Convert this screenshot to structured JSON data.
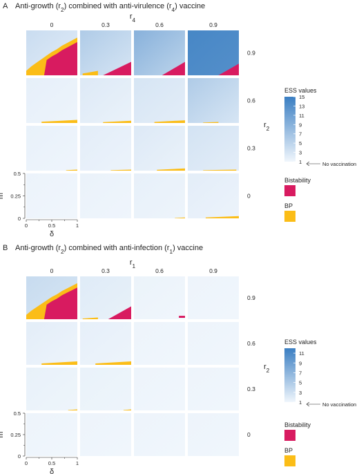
{
  "chart_data": [
    {
      "type": "heatmap",
      "panel": "A",
      "title_parts": [
        "Anti-growth (r",
        "2",
        ") combined with anti-virulence (r",
        "4",
        ") vaccine"
      ],
      "column_variable": {
        "name": "r",
        "sub": "4"
      },
      "column_values": [
        "0",
        "0.3",
        "0.6",
        "0.9"
      ],
      "row_variable": {
        "name": "r",
        "sub": "2"
      },
      "row_values": [
        "0.9",
        "0.6",
        "0.3",
        "0"
      ],
      "xlabel": "δ",
      "x_ticks": [
        "0",
        "0.5",
        "1"
      ],
      "xlim": [
        0,
        1
      ],
      "ylabel": "m",
      "y_ticks": [
        "0.5",
        "0.25",
        "0"
      ],
      "ylim": [
        0,
        0.5
      ],
      "legend": {
        "title": "ESS values",
        "ticks": [
          "15",
          "13",
          "11",
          "9",
          "7",
          "5",
          "3",
          "1"
        ],
        "range": [
          1,
          15
        ],
        "colors": [
          "#f0f6fc",
          "#3a7ec2"
        ],
        "annotation": "No vaccination",
        "categories": [
          {
            "name": "Bistability",
            "color": "#d81b60"
          },
          {
            "name": "BP",
            "color": "#fbbd17"
          }
        ]
      },
      "cells": [
        [
          {
            "ess": [
              2.0,
              4.0
            ],
            "bist_boundary": [
              [
                0,
                0
              ],
              [
                0.1,
                0.05
              ],
              [
                0.2,
                0.09
              ],
              [
                0.3,
                0.13
              ],
              [
                0.4,
                0.17
              ],
              [
                0.5,
                0.21
              ],
              [
                0.6,
                0.24
              ],
              [
                0.7,
                0.28
              ],
              [
                0.8,
                0.31
              ],
              [
                0.9,
                0.34
              ],
              [
                1.0,
                0.37
              ]
            ],
            "bp_width": 0.05,
            "bp_strip": null
          },
          {
            "ess": [
              3.0,
              6.0
            ],
            "bist_corner": [
              0.45,
              0.15
            ],
            "bp_strip": [
              0.05,
              0.35,
              0.05
            ]
          },
          {
            "ess": [
              5.0,
              9.0
            ],
            "bist_corner": [
              0.55,
              0.15
            ],
            "bp_strip": null
          },
          {
            "ess": [
              13.0,
              14.0
            ],
            "bist_corner": [
              0.6,
              0.13
            ],
            "bp_strip": null
          }
        ],
        [
          {
            "ess": [
              1.2,
              1.8
            ],
            "bist_corner": null,
            "bp_strip": [
              0.3,
              1.0,
              0.035
            ]
          },
          {
            "ess": [
              1.5,
              2.5
            ],
            "bist_corner": null,
            "bp_strip": [
              0.45,
              1.0,
              0.025
            ]
          },
          {
            "ess": [
              2.0,
              3.0
            ],
            "bist_corner": null,
            "bp_strip": [
              0.4,
              1.0,
              0.03
            ]
          },
          {
            "ess": [
              3.0,
              6.0
            ],
            "bist_corner": null,
            "bp_strip": [
              0.3,
              0.6,
              0.012
            ]
          }
        ],
        [
          {
            "ess": [
              1.1,
              1.6
            ],
            "bist_corner": null,
            "bp_strip": [
              0.78,
              1.0,
              0.012
            ]
          },
          {
            "ess": [
              1.3,
              2.0
            ],
            "bist_corner": null,
            "bp_strip": [
              0.6,
              1.0,
              0.012
            ]
          },
          {
            "ess": [
              1.5,
              2.5
            ],
            "bist_corner": null,
            "bp_strip": [
              0.45,
              1.0,
              0.025
            ]
          },
          {
            "ess": [
              2.0,
              3.2
            ],
            "bist_corner": null,
            "bp_strip": [
              0.3,
              0.95,
              0.012
            ]
          }
        ],
        [
          {
            "ess": [
              1.0,
              1.3
            ],
            "bist_corner": null,
            "bp_strip": null
          },
          {
            "ess": [
              1.1,
              1.5
            ],
            "bist_corner": null,
            "bp_strip": null
          },
          {
            "ess": [
              1.2,
              1.7
            ],
            "bist_corner": null,
            "bp_strip": [
              0.8,
              1.0,
              0.01
            ]
          },
          {
            "ess": [
              1.3,
              2.0
            ],
            "bist_corner": null,
            "bp_strip": [
              0.35,
              1.0,
              0.025
            ]
          }
        ]
      ]
    },
    {
      "type": "heatmap",
      "panel": "B",
      "title_parts": [
        "Anti-growth (r",
        "2",
        ") combined with anti-infection (r",
        "1",
        ") vaccine"
      ],
      "column_variable": {
        "name": "r",
        "sub": "1"
      },
      "column_values": [
        "0",
        "0.3",
        "0.6",
        "0.9"
      ],
      "row_variable": {
        "name": "r",
        "sub": "2"
      },
      "row_values": [
        "0.9",
        "0.6",
        "0.3",
        "0"
      ],
      "xlabel": "δ",
      "x_ticks": [
        "0",
        "0.5",
        "1"
      ],
      "xlim": [
        0,
        1
      ],
      "ylabel": "m",
      "y_ticks": [
        "0.5",
        "0.25",
        "0"
      ],
      "ylim": [
        0,
        0.5
      ],
      "legend": {
        "title": "ESS values",
        "ticks": [
          "11",
          "9",
          "7",
          "5",
          "3",
          "1"
        ],
        "range": [
          1,
          12
        ],
        "colors": [
          "#f0f6fc",
          "#3a7ec2"
        ],
        "annotation": "No vaccination",
        "categories": [
          {
            "name": "Bistability",
            "color": "#d81b60"
          },
          {
            "name": "BP",
            "color": "#fbbd17"
          }
        ]
      },
      "cells": [
        [
          {
            "ess": [
              2.5,
              3.5
            ],
            "bist_boundary": [
              [
                0,
                0
              ],
              [
                0.1,
                0.05
              ],
              [
                0.2,
                0.09
              ],
              [
                0.3,
                0.13
              ],
              [
                0.4,
                0.17
              ],
              [
                0.5,
                0.21
              ],
              [
                0.6,
                0.24
              ],
              [
                0.7,
                0.28
              ],
              [
                0.8,
                0.31
              ],
              [
                0.9,
                0.34
              ],
              [
                1.0,
                0.37
              ]
            ],
            "bp_width": 0.05,
            "bp_strip": null
          },
          {
            "ess": [
              1.5,
              2.0
            ],
            "bist_corner": [
              0.55,
              0.15
            ],
            "bp_strip": [
              0.05,
              0.35,
              0.02
            ]
          },
          {
            "ess": [
              1.0,
              1.3
            ],
            "bist_corner": null,
            "bp_strip": null,
            "bist_strip": [
              0.88,
              1.0,
              0.02
            ]
          },
          {
            "ess": [
              1.0,
              1.2
            ],
            "bist_corner": null,
            "bp_strip": null
          }
        ],
        [
          {
            "ess": [
              1.2,
              1.8
            ],
            "bist_corner": null,
            "bp_strip": [
              0.3,
              1.0,
              0.04
            ]
          },
          {
            "ess": [
              1.2,
              1.6
            ],
            "bist_corner": null,
            "bp_strip": [
              0.3,
              1.0,
              0.04
            ]
          },
          {
            "ess": [
              1.0,
              1.2
            ],
            "bist_corner": null,
            "bp_strip": null
          },
          {
            "ess": [
              1.0,
              1.2
            ],
            "bist_corner": null,
            "bp_strip": null
          }
        ],
        [
          {
            "ess": [
              1.1,
              1.5
            ],
            "bist_corner": null,
            "bp_strip": [
              0.82,
              1.0,
              0.012
            ]
          },
          {
            "ess": [
              1.1,
              1.4
            ],
            "bist_corner": null,
            "bp_strip": [
              0.85,
              1.0,
              0.012
            ]
          },
          {
            "ess": [
              1.0,
              1.2
            ],
            "bist_corner": null,
            "bp_strip": null
          },
          {
            "ess": [
              1.0,
              1.2
            ],
            "bist_corner": null,
            "bp_strip": null
          }
        ],
        [
          {
            "ess": [
              1.0,
              1.2
            ],
            "bist_corner": null,
            "bp_strip": null
          },
          {
            "ess": [
              1.0,
              1.2
            ],
            "bist_corner": null,
            "bp_strip": null
          },
          {
            "ess": [
              1.0,
              1.2
            ],
            "bist_corner": null,
            "bp_strip": null
          },
          {
            "ess": [
              1.0,
              1.2
            ],
            "bist_corner": null,
            "bp_strip": null
          }
        ]
      ]
    }
  ]
}
